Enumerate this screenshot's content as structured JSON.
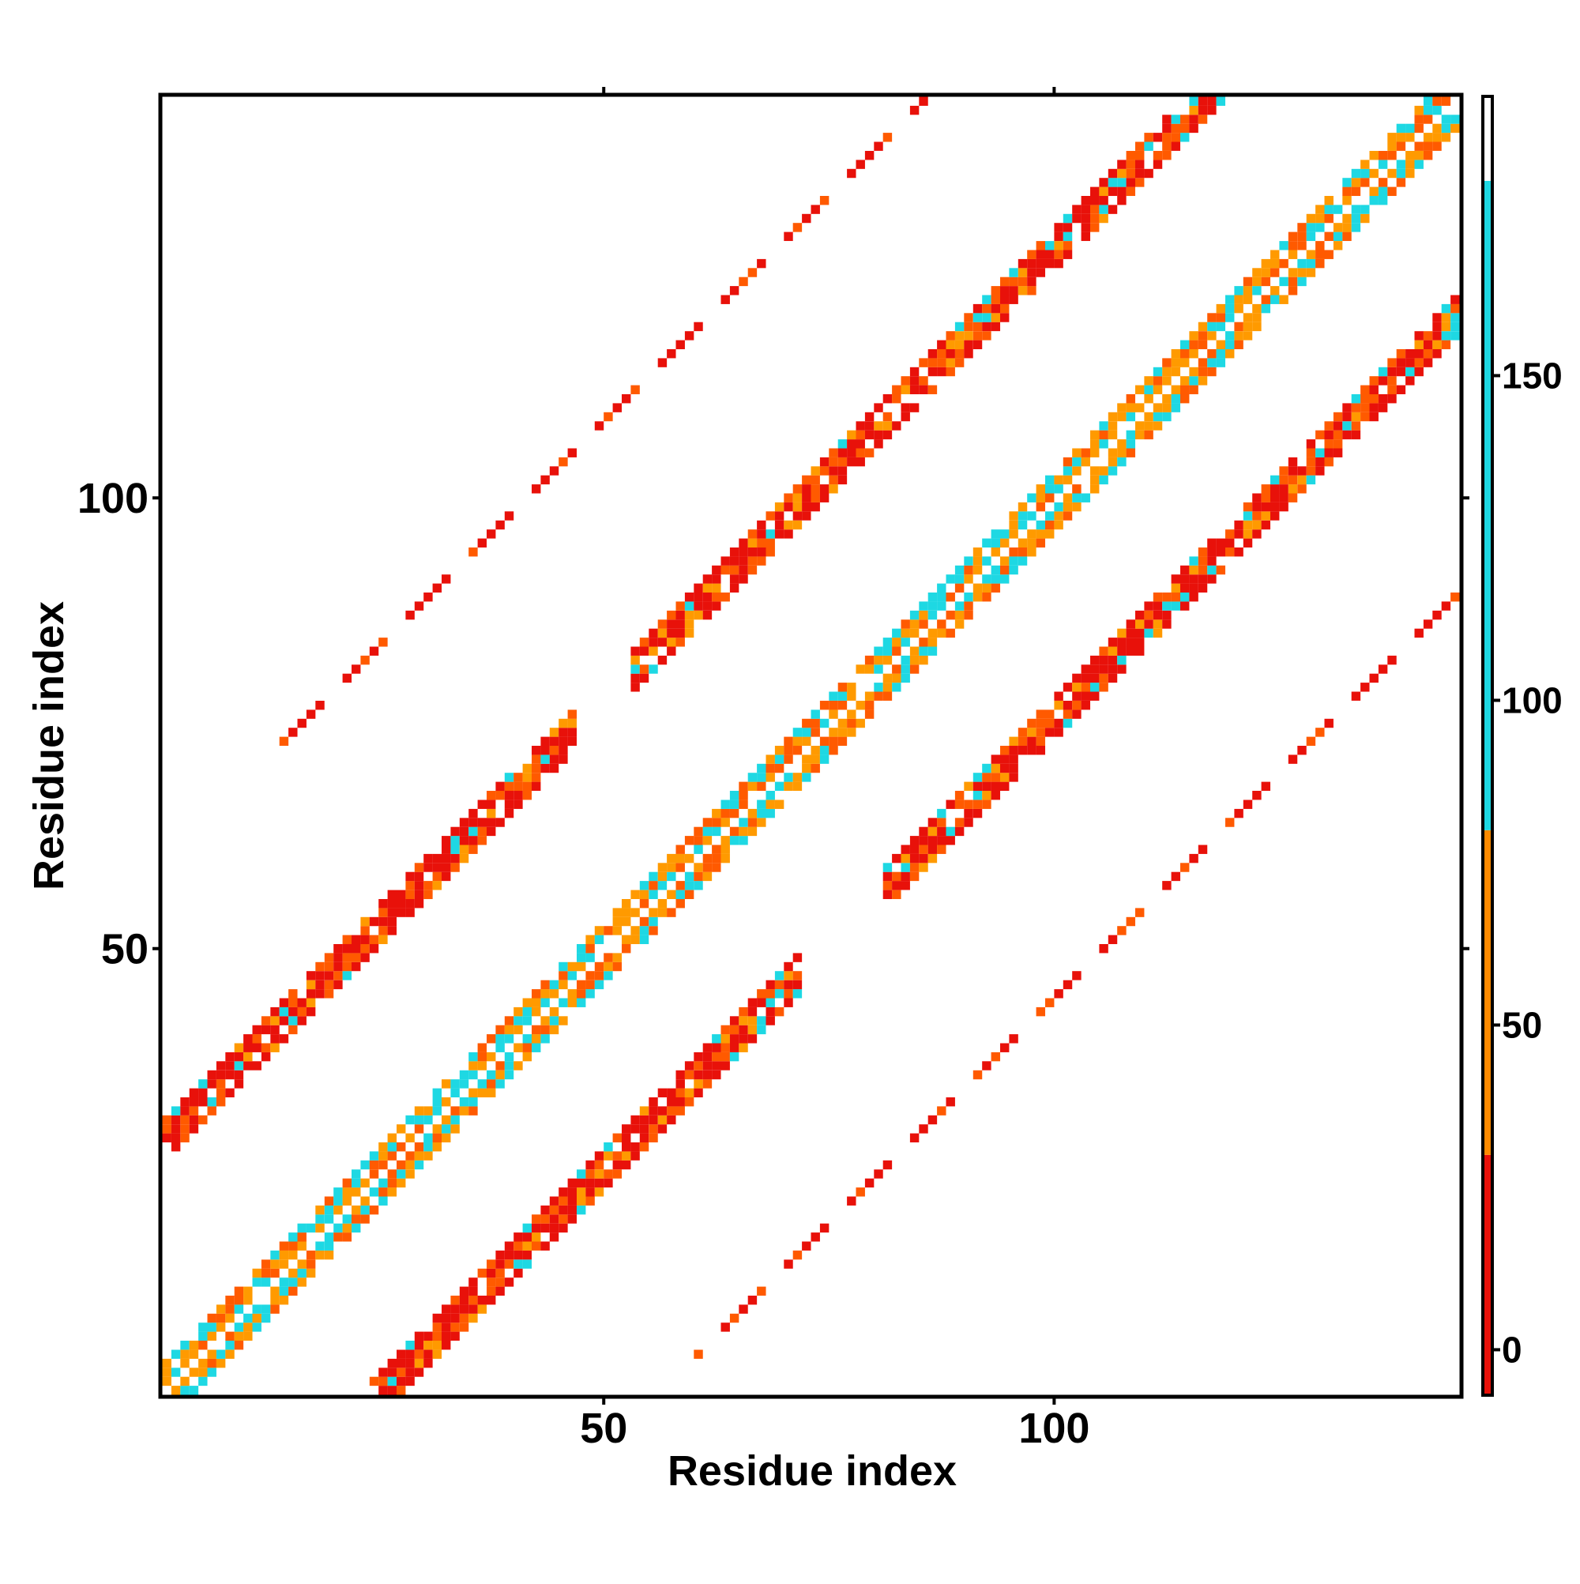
{
  "chart_data": {
    "type": "heatmap",
    "title": "",
    "xlabel": "Residue index",
    "ylabel": "Residue index",
    "xlim": [
      1,
      144
    ],
    "ylim": [
      1,
      144
    ],
    "x_ticks": [
      "50",
      "100"
    ],
    "x_tick_values": [
      50,
      100
    ],
    "y_ticks": [
      "50",
      "100"
    ],
    "y_tick_values": [
      50,
      100
    ],
    "colorbar": {
      "range": [
        -7,
        193
      ],
      "ticks": [
        "0",
        "50",
        "100",
        "150"
      ],
      "tick_values": [
        0,
        50,
        100,
        150
      ],
      "bands": [
        {
          "from": -7,
          "to": 30,
          "color": "#e8110a"
        },
        {
          "from": 30,
          "to": 80,
          "color": "#ff8a00"
        },
        {
          "from": 80,
          "to": 180,
          "color": "#1ed8e3"
        },
        {
          "from": 180,
          "to": 193,
          "color": "#ffffff"
        }
      ]
    },
    "colors": {
      "red": "#e8110a",
      "orange_red": "#ff5a00",
      "orange": "#ff9a00",
      "cyan": "#1ed8e3"
    },
    "bands": [
      {
        "name": "main diagonal",
        "offset": 0,
        "width": 3.2,
        "pattern": "diag",
        "weights": [
          0.42,
          0.38,
          0.2
        ]
      },
      {
        "name": "upper strand 1",
        "offset": 28,
        "width": 2.2,
        "pattern": "solid",
        "x_start": 1,
        "x_end": 120,
        "gaps": [
          [
            47,
            52
          ]
        ]
      },
      {
        "name": "upper strand 2",
        "offset": 59,
        "width": 0.9,
        "pattern": "dash",
        "x_start": 13,
        "x_end": 95
      },
      {
        "name": "lower strand 1",
        "offset": -24,
        "width": 2.2,
        "pattern": "solid",
        "x_start": 24,
        "x_end": 144,
        "gaps": [
          [
            72,
            80
          ]
        ]
      },
      {
        "name": "lower strand 2",
        "offset": -55,
        "width": 0.9,
        "pattern": "dash",
        "x_start": 60,
        "x_end": 144
      }
    ]
  }
}
